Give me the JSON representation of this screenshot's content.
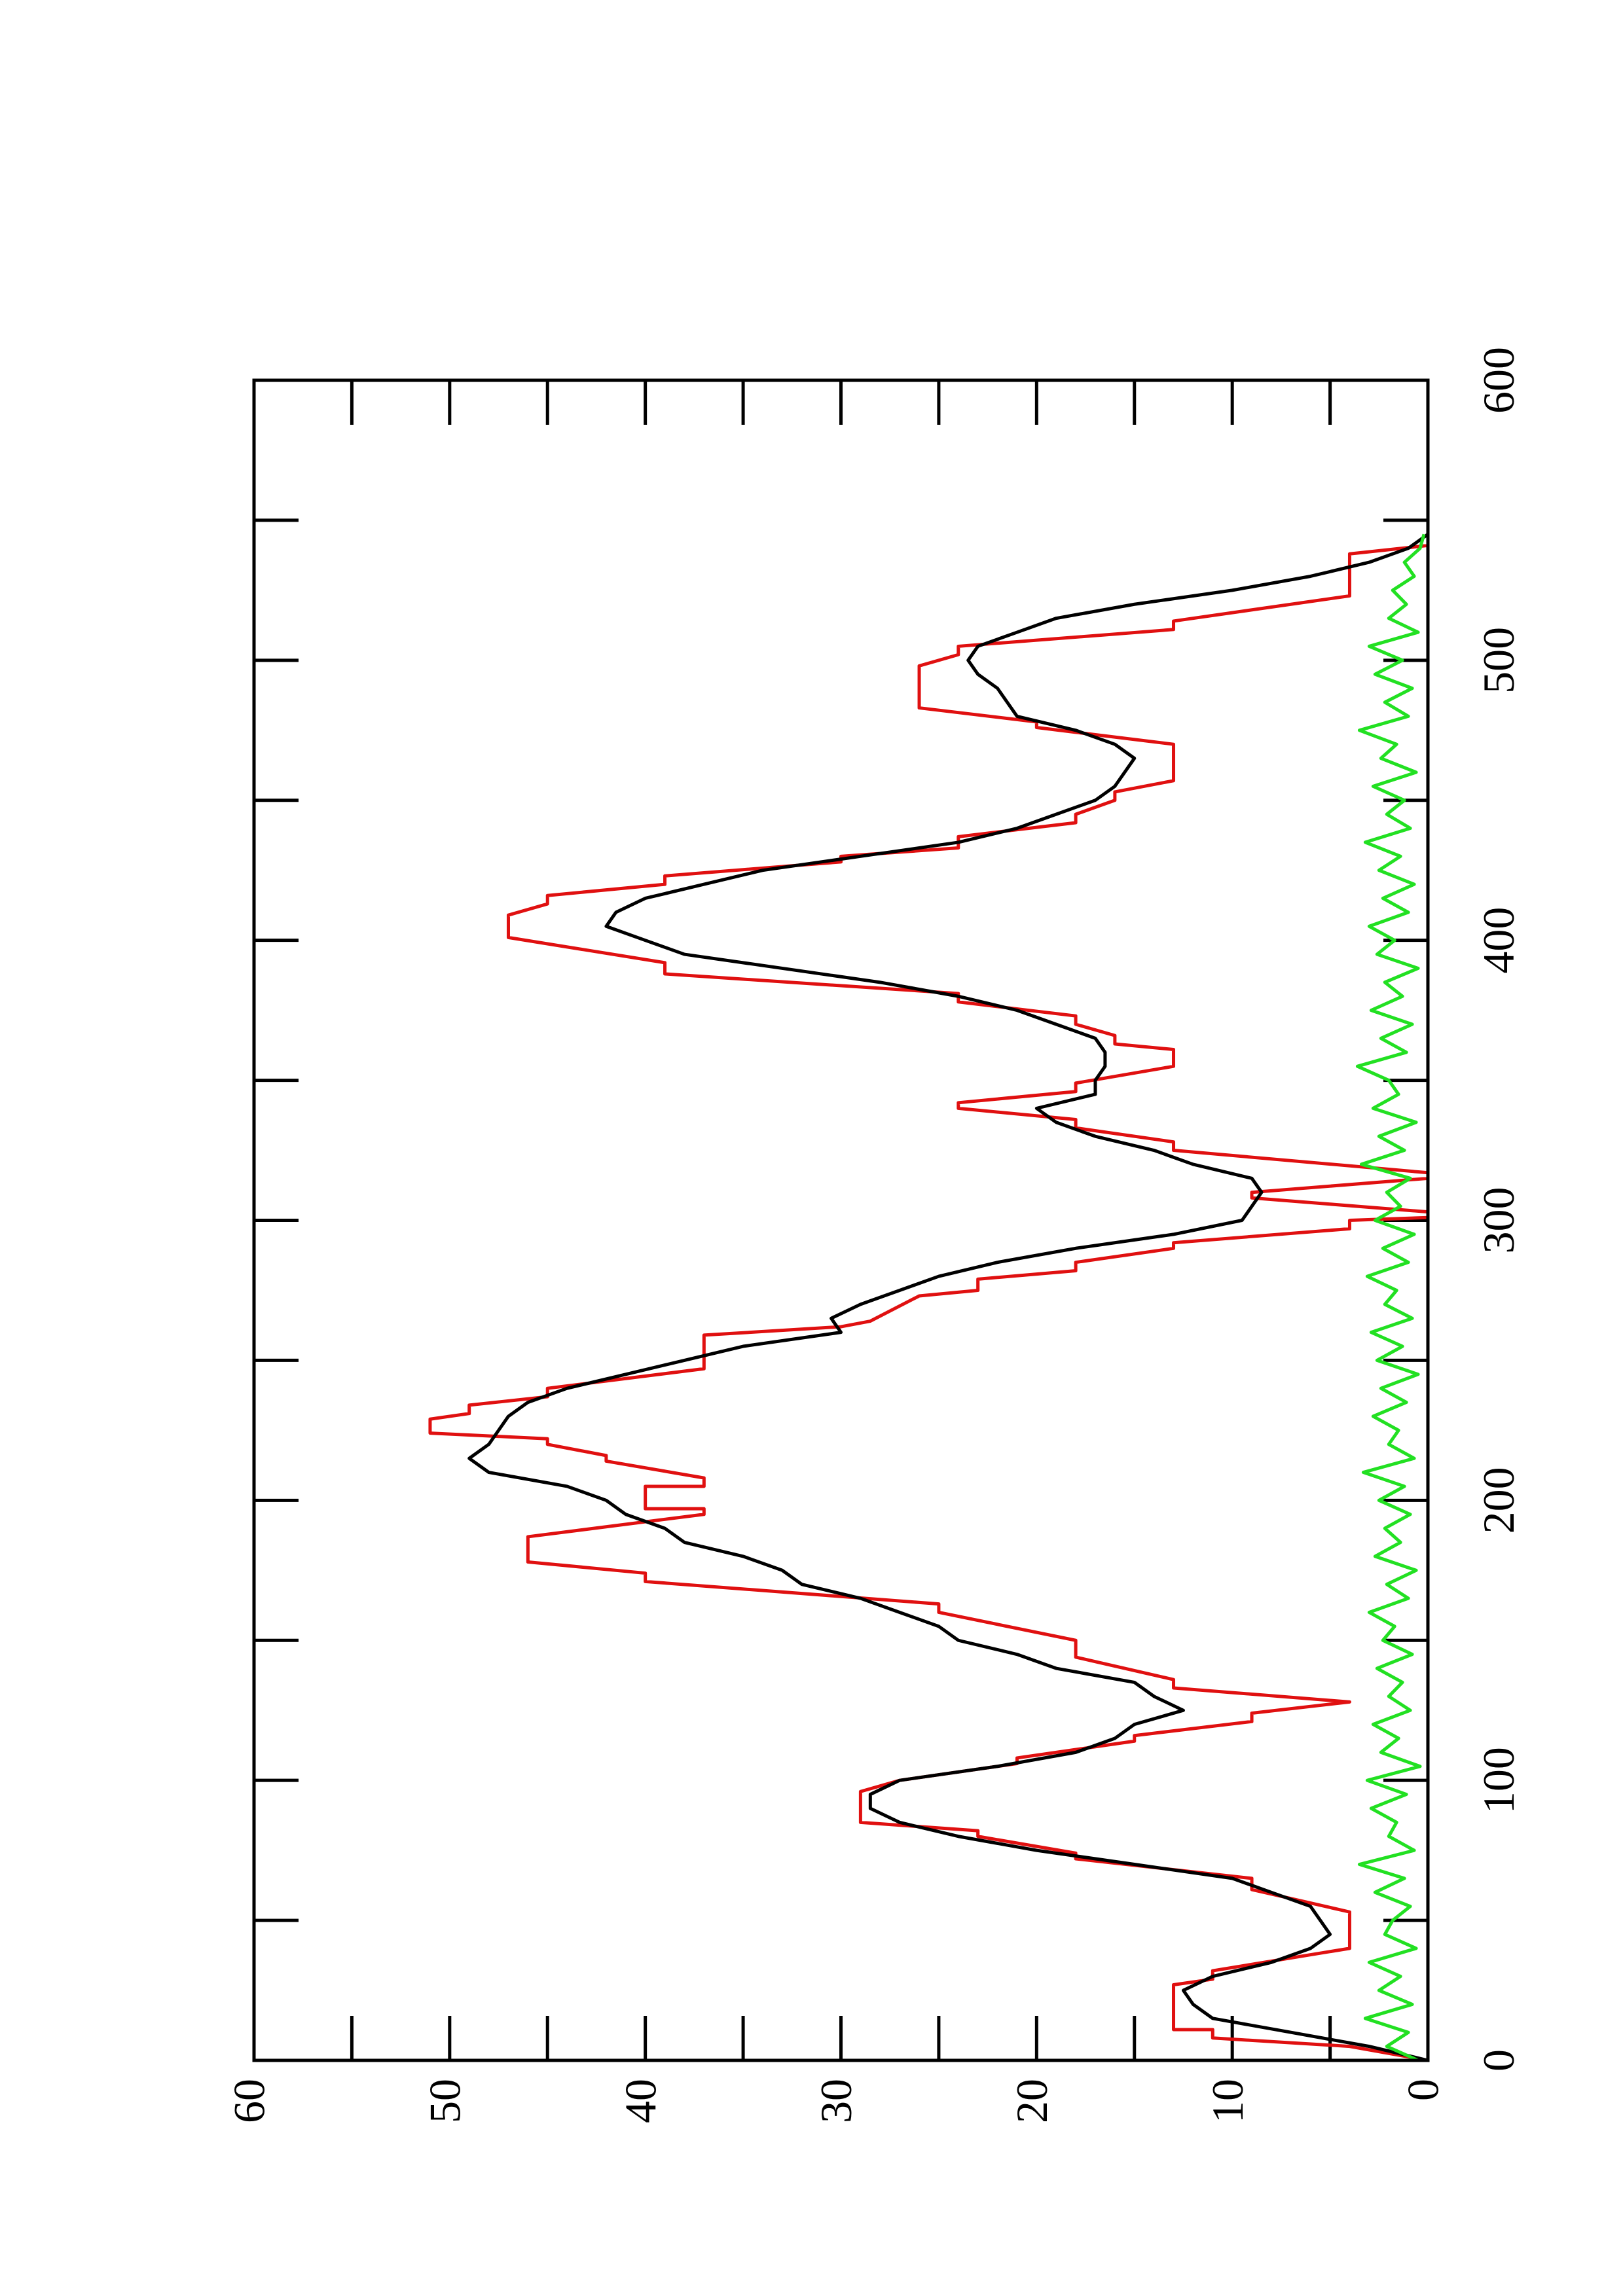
{
  "chart_data": {
    "type": "line",
    "xlim": [
      0,
      600
    ],
    "ylim": [
      0,
      60
    ],
    "xticks": [
      0,
      100,
      200,
      300,
      400,
      500,
      600
    ],
    "xminorticks": [
      50,
      150,
      250,
      350,
      450,
      550
    ],
    "yticks": [
      0,
      10,
      20,
      30,
      40,
      50,
      60
    ],
    "yminorticks": [
      5,
      15,
      25,
      35,
      45,
      55
    ],
    "rotation": -90,
    "series": [
      {
        "color": "#e01010",
        "x": [
          0,
          5,
          8,
          11,
          11,
          27,
          29,
          32,
          40,
          53,
          61,
          65,
          72,
          74,
          80,
          82,
          85,
          96,
          100,
          106,
          108,
          114,
          116,
          121,
          124,
          128,
          133,
          136,
          144,
          150,
          160,
          163,
          171,
          174,
          178,
          187,
          195,
          197,
          197,
          205,
          205,
          208,
          214,
          216,
          220,
          222,
          224,
          229,
          231,
          234,
          237,
          240,
          247,
          259,
          262,
          264,
          273,
          275,
          279,
          282,
          285,
          290,
          292,
          297,
          300,
          301,
          303,
          308,
          310,
          315,
          317,
          325,
          328,
          333,
          336,
          340,
          342,
          346,
          349,
          355,
          361,
          363,
          366,
          370,
          373,
          378,
          381,
          388,
          392,
          401,
          409,
          413,
          416,
          420,
          423,
          428,
          430,
          433,
          437,
          442,
          445,
          450,
          453,
          457,
          470,
          476,
          478,
          483,
          498,
          502,
          505,
          511,
          514,
          523,
          538,
          541,
          546
        ],
        "values": [
          0,
          4,
          11,
          11,
          13,
          13,
          11,
          11,
          4,
          4,
          9,
          9,
          18,
          18,
          23,
          23,
          29,
          29,
          27,
          21,
          21,
          15,
          15,
          9,
          9,
          4,
          13,
          13,
          18,
          18,
          25,
          25,
          40,
          40,
          46,
          46,
          37,
          37,
          40,
          40,
          37,
          37,
          42,
          42,
          45,
          45,
          51,
          51,
          49,
          49,
          45,
          45,
          37,
          37,
          30,
          28.5,
          26,
          23,
          23,
          18,
          18,
          13,
          13,
          4,
          4,
          0,
          0,
          9,
          9,
          0,
          0,
          13,
          13,
          18,
          18,
          24,
          24,
          18,
          18,
          13,
          13,
          16,
          16,
          18,
          18,
          24,
          24,
          39,
          39,
          47,
          47,
          45,
          45,
          39,
          39,
          30,
          30,
          24,
          24,
          18,
          18,
          16,
          16,
          13,
          13,
          20,
          20,
          26,
          26,
          24,
          24,
          13,
          13,
          4,
          4,
          0,
          0
        ]
      },
      {
        "color": "#000000",
        "x": [
          0,
          5,
          10,
          15,
          20,
          25,
          30,
          35,
          40,
          45,
          50,
          55,
          60,
          65,
          70,
          75,
          80,
          85,
          90,
          95,
          100,
          105,
          110,
          115,
          120,
          125,
          130,
          135,
          140,
          145,
          150,
          155,
          160,
          165,
          170,
          175,
          180,
          185,
          190,
          195,
          200,
          205,
          210,
          215,
          220,
          225,
          230,
          235,
          240,
          245,
          250,
          255,
          260,
          265,
          270,
          275,
          280,
          285,
          290,
          295,
          300,
          305,
          310,
          315,
          320,
          325,
          330,
          335,
          340,
          345,
          350,
          355,
          360,
          365,
          370,
          375,
          380,
          385,
          390,
          395,
          400,
          405,
          410,
          415,
          420,
          425,
          430,
          435,
          440,
          445,
          450,
          455,
          460,
          465,
          470,
          475,
          480,
          485,
          490,
          495,
          500,
          505,
          510,
          515,
          520,
          525,
          530,
          535,
          540,
          545
        ],
        "values": [
          0,
          3,
          7,
          11,
          12,
          12.5,
          11,
          8,
          6,
          5,
          5.5,
          6,
          8,
          10,
          15,
          20,
          24,
          27,
          28.5,
          28.5,
          27,
          22,
          18,
          16,
          15,
          12.5,
          14,
          15,
          19,
          21,
          24,
          25,
          27,
          29,
          32,
          33,
          35,
          38,
          39,
          41,
          42,
          44,
          48,
          49,
          48,
          47.5,
          47,
          46,
          44,
          41,
          38,
          35,
          30,
          30.5,
          29,
          27,
          25,
          22,
          18,
          13,
          9.5,
          9,
          8.5,
          9,
          12,
          14,
          17,
          19,
          20,
          17,
          17,
          16.5,
          16.5,
          17,
          19,
          21,
          24,
          28,
          33,
          38,
          40,
          42,
          41.5,
          40,
          37,
          34,
          29,
          24,
          21,
          19,
          17,
          16,
          15.5,
          15,
          16,
          18,
          21,
          21.5,
          22,
          23,
          23.5,
          23,
          21,
          19,
          15,
          10,
          6,
          3,
          1,
          0
        ]
      },
      {
        "color": "#22e022",
        "x": [
          0,
          5,
          10,
          15,
          20,
          25,
          30,
          35,
          40,
          45,
          50,
          55,
          60,
          65,
          70,
          75,
          80,
          85,
          90,
          95,
          100,
          105,
          110,
          115,
          120,
          125,
          130,
          135,
          140,
          145,
          150,
          155,
          160,
          165,
          170,
          175,
          180,
          185,
          190,
          195,
          200,
          205,
          210,
          215,
          220,
          225,
          230,
          235,
          240,
          245,
          250,
          255,
          260,
          265,
          270,
          275,
          280,
          285,
          290,
          295,
          300,
          305,
          310,
          315,
          320,
          325,
          330,
          335,
          340,
          345,
          350,
          355,
          360,
          365,
          370,
          375,
          380,
          385,
          390,
          395,
          400,
          405,
          410,
          415,
          420,
          425,
          430,
          435,
          440,
          445,
          450,
          455,
          460,
          465,
          470,
          475,
          480,
          485,
          490,
          495,
          500,
          505,
          510,
          515,
          520,
          525,
          530,
          535,
          540,
          545
        ],
        "values": [
          0.5,
          2.1,
          1.0,
          3.2,
          0.8,
          2.5,
          1.4,
          3.0,
          0.6,
          2.2,
          1.8,
          0.9,
          2.7,
          1.2,
          3.5,
          0.7,
          2.0,
          1.6,
          2.9,
          1.1,
          3.1,
          0.4,
          2.4,
          1.5,
          2.8,
          0.9,
          2.0,
          1.3,
          2.6,
          0.8,
          2.3,
          1.7,
          3.0,
          1.0,
          2.1,
          0.6,
          2.7,
          1.4,
          2.2,
          0.9,
          2.5,
          1.2,
          3.3,
          0.7,
          2.0,
          1.5,
          2.8,
          1.1,
          2.4,
          0.5,
          2.6,
          1.3,
          2.9,
          0.8,
          2.2,
          1.6,
          3.1,
          1.0,
          2.3,
          0.7,
          2.7,
          1.4,
          2.1,
          0.9,
          3.4,
          1.2,
          2.5,
          0.6,
          2.8,
          1.5,
          2.0,
          3.6,
          1.1,
          2.4,
          0.8,
          2.9,
          1.3,
          2.2,
          0.5,
          2.6,
          1.7,
          3.0,
          1.0,
          2.3,
          0.7,
          2.5,
          1.4,
          3.2,
          0.9,
          2.1,
          1.2,
          2.8,
          0.6,
          2.4,
          1.6,
          3.5,
          1.0,
          2.2,
          0.8,
          2.7,
          1.3,
          3.0,
          0.5,
          2.0,
          1.1,
          1.8,
          0.7,
          1.2,
          0.4,
          0.2
        ]
      }
    ]
  }
}
